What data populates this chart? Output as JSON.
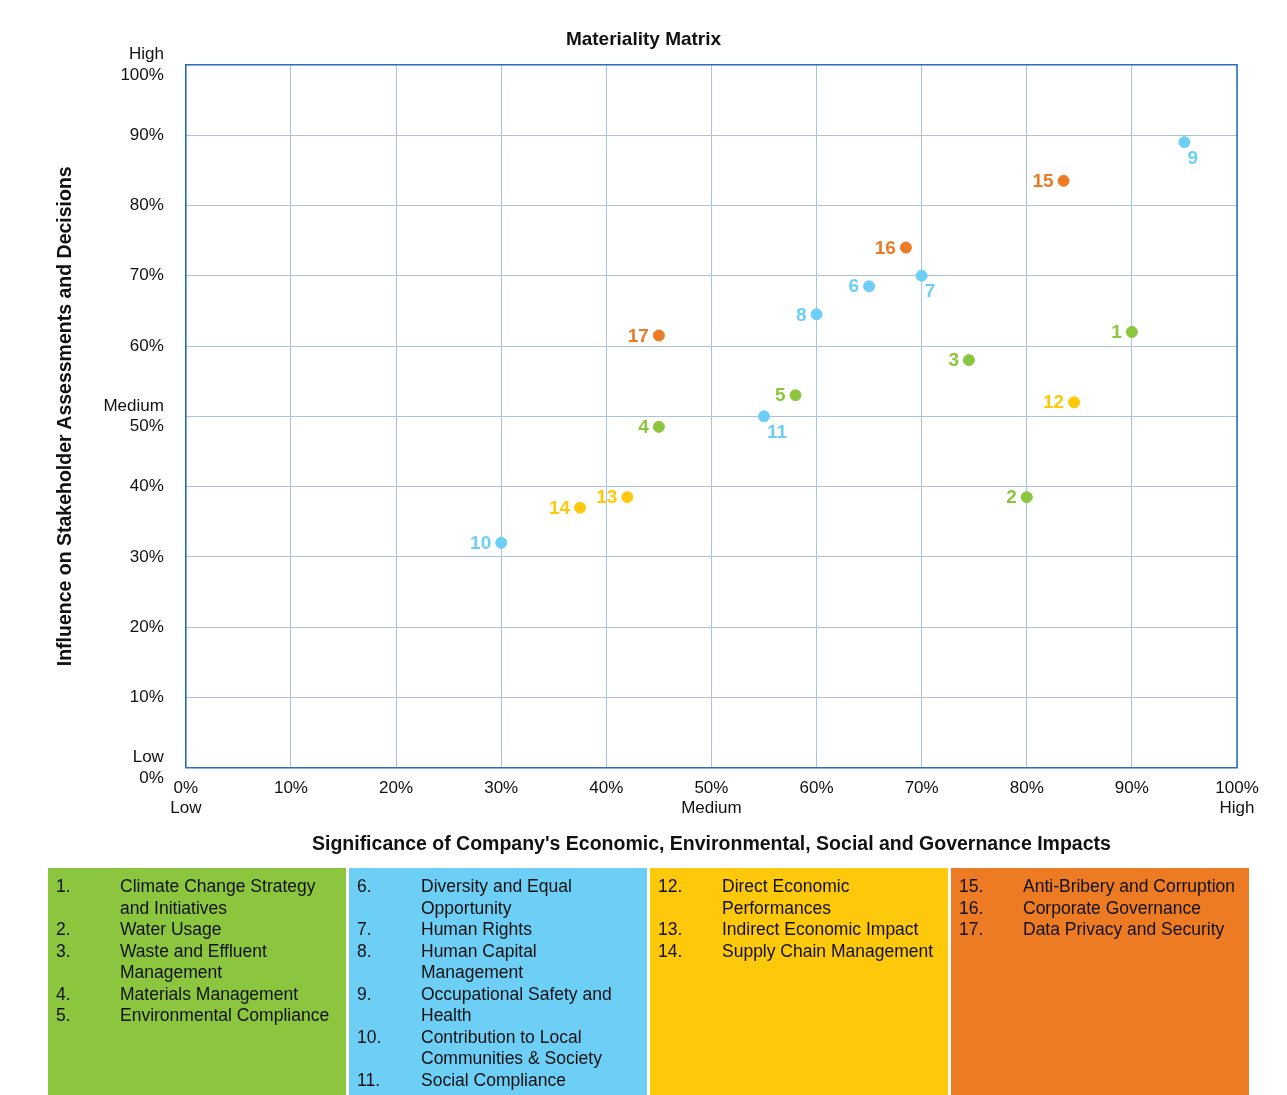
{
  "chart_data": {
    "type": "scatter",
    "title": "Materiality Matrix",
    "xlabel": "Significance of Company's Economic, Environmental, Social and Governance Impacts",
    "ylabel": "Influence on Stakeholder Assessments and Decisions",
    "xlim": [
      0,
      100
    ],
    "ylim": [
      0,
      100
    ],
    "xticks": [
      {
        "value": 0,
        "label": "0%\nLow"
      },
      {
        "value": 10,
        "label": "10%"
      },
      {
        "value": 20,
        "label": "20%"
      },
      {
        "value": 30,
        "label": "30%"
      },
      {
        "value": 40,
        "label": "40%"
      },
      {
        "value": 50,
        "label": "50%\nMedium"
      },
      {
        "value": 60,
        "label": "60%"
      },
      {
        "value": 70,
        "label": "70%"
      },
      {
        "value": 80,
        "label": "80%"
      },
      {
        "value": 90,
        "label": "90%"
      },
      {
        "value": 100,
        "label": "100%\nHigh"
      }
    ],
    "yticks": [
      {
        "value": 0,
        "label": "Low\n0%"
      },
      {
        "value": 10,
        "label": "10%"
      },
      {
        "value": 20,
        "label": "20%"
      },
      {
        "value": 30,
        "label": "30%"
      },
      {
        "value": 40,
        "label": "40%"
      },
      {
        "value": 50,
        "label": "Medium\n50%"
      },
      {
        "value": 60,
        "label": "60%"
      },
      {
        "value": 70,
        "label": "70%"
      },
      {
        "value": 80,
        "label": "80%"
      },
      {
        "value": 90,
        "label": "90%"
      },
      {
        "value": 100,
        "label": "High\n100%"
      }
    ],
    "grid": true,
    "legend": false,
    "marker": "circle",
    "series": [
      {
        "color": "#8cc63f",
        "x": [
          90,
          80,
          74.5,
          45,
          58
        ],
        "values": [
          62,
          38.5,
          58,
          48.5,
          53
        ]
      },
      {
        "color": "#6dcff6",
        "x": [
          65,
          70,
          60,
          95,
          30,
          55
        ],
        "values": [
          68.5,
          70,
          64.5,
          89,
          32,
          50
        ]
      },
      {
        "color": "#ffc90b",
        "x": [
          84.5,
          42,
          37.5
        ],
        "values": [
          52,
          38.5,
          37
        ]
      },
      {
        "color": "#ec7b24",
        "x": [
          83.5,
          68.5,
          45
        ],
        "values": [
          83.5,
          74,
          61.5
        ]
      }
    ],
    "annotations": [
      {
        "text": "1",
        "x": 90,
        "y": 62
      },
      {
        "text": "2",
        "x": 80,
        "y": 38.5
      },
      {
        "text": "3",
        "x": 74.5,
        "y": 58
      },
      {
        "text": "4",
        "x": 45,
        "y": 48.5
      },
      {
        "text": "5",
        "x": 58,
        "y": 53
      },
      {
        "text": "6",
        "x": 65,
        "y": 68.5
      },
      {
        "text": "7",
        "x": 70,
        "y": 70
      },
      {
        "text": "8",
        "x": 60,
        "y": 64.5
      },
      {
        "text": "9",
        "x": 95,
        "y": 89
      },
      {
        "text": "10",
        "x": 30,
        "y": 32
      },
      {
        "text": "11",
        "x": 55,
        "y": 50
      },
      {
        "text": "12",
        "x": 84.5,
        "y": 52
      },
      {
        "text": "13",
        "x": 42,
        "y": 38.5
      },
      {
        "text": "14",
        "x": 37.5,
        "y": 37
      },
      {
        "text": "15",
        "x": 83.5,
        "y": 83.5
      },
      {
        "text": "16",
        "x": 68.5,
        "y": 74
      },
      {
        "text": "17",
        "x": 45,
        "y": 61.5
      },
      "1. Climate Change Strategy and Initiatives",
      "2. Water Usage",
      "3. Waste and Effluent Management",
      "4. Materials Management",
      "5. Environmental Compliance",
      "6. Diversity and Equal Opportunity",
      "7. Human Rights",
      "8. Human Capital Management",
      "9. Occupational Safety and Health",
      "10. Contribution to Local Communities & Society",
      "11. Social Compliance",
      "12. Direct Economic Performances",
      "13. Indirect Economic Impact",
      "14. Supply Chain Management",
      "15. Anti-Bribery and Corruption",
      "16. Corporate Governance",
      "17. Data Privacy and Security"
    ]
  }
}
